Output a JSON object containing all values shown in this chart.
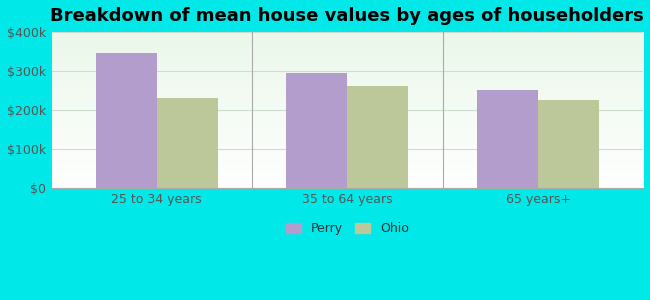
{
  "title": "Breakdown of mean house values by ages of householders",
  "categories": [
    "25 to 34 years",
    "35 to 64 years",
    "65 years+"
  ],
  "perry_values": [
    345000,
    295000,
    250000
  ],
  "ohio_values": [
    230000,
    260000,
    225000
  ],
  "perry_color": "#b39dcc",
  "ohio_color": "#bcc89a",
  "ylim": [
    0,
    400000
  ],
  "yticks": [
    0,
    100000,
    200000,
    300000,
    400000
  ],
  "ytick_labels": [
    "$0",
    "$100k",
    "$200k",
    "$300k",
    "$400k"
  ],
  "legend_labels": [
    "Perry",
    "Ohio"
  ],
  "outer_bg": "#00e8e8",
  "title_fontsize": 13,
  "bar_width": 0.32,
  "grid_color": "#ccddcc"
}
